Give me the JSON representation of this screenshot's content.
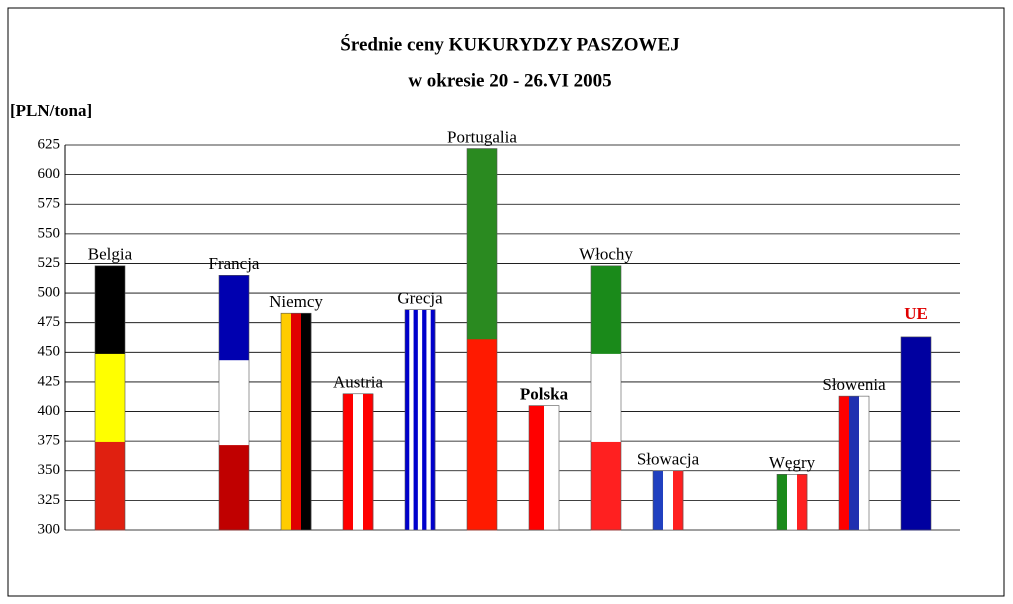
{
  "chart_data": {
    "type": "bar",
    "title": "Średnie ceny KUKURYDZY PASZOWEJ",
    "subtitle": "w okresie 20 - 26.VI 2005",
    "y_label": "[PLN/tona]",
    "categories": [
      "Belgia",
      null,
      "Francja",
      "Niemcy",
      "Austria",
      "Grecja",
      "Portugalia",
      "Polska",
      "Włochy",
      "Słowacja",
      null,
      "Węgry",
      "Słowenia",
      "UE"
    ],
    "values": [
      523,
      null,
      515,
      483,
      415,
      486,
      622,
      405,
      523,
      350,
      null,
      347,
      413,
      463
    ],
    "flags": [
      {
        "dir": "h",
        "colors": [
          "#000000",
          "#ffff00",
          "#e02010"
        ]
      },
      null,
      {
        "dir": "h",
        "colors": [
          "#0000b0",
          "#ffffff",
          "#c00000"
        ]
      },
      {
        "dir": "v",
        "colors": [
          "#ffcc00",
          "#e00000",
          "#000000"
        ]
      },
      {
        "dir": "v",
        "colors": [
          "#ff0000",
          "#ffffff",
          "#ff0000"
        ]
      },
      {
        "dir": "v",
        "colors": [
          "#0000cc",
          "#ffffff",
          "#0000cc",
          "#ffffff",
          "#0000cc",
          "#ffffff",
          "#0000cc"
        ]
      },
      {
        "dir": "h",
        "colors": [
          "#2a8a20",
          "#ff1a00"
        ]
      },
      {
        "dir": "v",
        "colors": [
          "#ff0000",
          "#ffffff"
        ]
      },
      {
        "dir": "h",
        "colors": [
          "#1a8a1a",
          "#ffffff",
          "#ff2020"
        ]
      },
      {
        "dir": "v",
        "colors": [
          "#2040c0",
          "#ffffff",
          "#ff2020"
        ]
      },
      null,
      {
        "dir": "v",
        "colors": [
          "#1a8a1a",
          "#ffffff",
          "#ff2020"
        ]
      },
      {
        "dir": "v",
        "colors": [
          "#ff0000",
          "#2030b0",
          "#ffffff"
        ]
      },
      {
        "dir": "h",
        "colors": [
          "#0000a0"
        ]
      }
    ],
    "ylim": [
      300,
      625
    ],
    "yticks": [
      300,
      325,
      350,
      375,
      400,
      425,
      450,
      475,
      500,
      525,
      550,
      575,
      600,
      625
    ],
    "grid": true
  }
}
